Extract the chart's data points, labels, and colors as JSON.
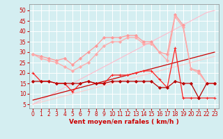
{
  "xlabel": "Vent moyen/en rafales ( km/h )",
  "background_color": "#d4eef1",
  "grid_color": "#ffffff",
  "x_values": [
    0,
    1,
    2,
    3,
    4,
    5,
    6,
    7,
    8,
    9,
    10,
    11,
    12,
    13,
    14,
    15,
    16,
    17,
    18,
    19,
    20,
    21,
    22,
    23
  ],
  "series": [
    {
      "name": "diagonal_upper_light",
      "color": "#ffbbcc",
      "linewidth": 0.8,
      "marker": null,
      "y": [
        5,
        7,
        9,
        11,
        13,
        15,
        17,
        19,
        21,
        23,
        25,
        27,
        29,
        31,
        33,
        35,
        37,
        39,
        41,
        43,
        45,
        47,
        49,
        50
      ]
    },
    {
      "name": "diagonal_lower_light",
      "color": "#ffcccc",
      "linewidth": 0.8,
      "marker": null,
      "y": [
        5,
        6,
        7,
        8,
        9,
        10,
        11,
        12,
        13,
        14,
        15,
        16,
        17,
        18,
        19,
        20,
        21,
        22,
        23,
        24,
        25,
        26,
        27,
        28
      ]
    },
    {
      "name": "pink_upper_curve",
      "color": "#ff9999",
      "linewidth": 0.9,
      "marker": "D",
      "markersize": 2,
      "y": [
        29,
        28,
        27,
        26,
        27,
        24,
        27,
        30,
        33,
        37,
        37,
        37,
        38,
        38,
        35,
        35,
        30,
        29,
        48,
        43,
        22,
        21,
        15,
        15
      ]
    },
    {
      "name": "pink_lower_curve",
      "color": "#ffaaaa",
      "linewidth": 0.9,
      "marker": "D",
      "markersize": 2,
      "y": [
        29,
        27,
        26,
        25,
        23,
        21,
        23,
        25,
        29,
        33,
        35,
        35,
        37,
        37,
        34,
        34,
        30,
        26,
        47,
        42,
        22,
        20,
        15,
        15
      ]
    },
    {
      "name": "red_main_markers",
      "color": "#ff2222",
      "linewidth": 0.9,
      "marker": "+",
      "markersize": 3,
      "y": [
        20,
        16,
        16,
        15,
        15,
        11,
        15,
        16,
        15,
        15,
        19,
        19,
        19,
        20,
        21,
        21,
        17,
        13,
        32,
        8,
        8,
        8,
        8,
        8
      ]
    },
    {
      "name": "dark_red_diagonal",
      "color": "#cc0000",
      "linewidth": 0.9,
      "marker": null,
      "y": [
        7,
        8,
        9,
        10,
        11,
        12,
        13,
        14,
        15,
        16,
        17,
        18,
        19,
        20,
        21,
        22,
        23,
        24,
        25,
        26,
        27,
        28,
        29,
        30
      ]
    },
    {
      "name": "dark_red_curve",
      "color": "#bb0000",
      "linewidth": 0.9,
      "marker": "D",
      "markersize": 2,
      "y": [
        16,
        16,
        16,
        15,
        15,
        15,
        15,
        16,
        15,
        15,
        16,
        16,
        16,
        16,
        16,
        16,
        13,
        13,
        16,
        15,
        15,
        8,
        15,
        15
      ]
    }
  ],
  "ylim": [
    3,
    53
  ],
  "yticks": [
    5,
    10,
    15,
    20,
    25,
    30,
    35,
    40,
    45,
    50
  ],
  "xticks": [
    0,
    1,
    2,
    3,
    4,
    5,
    6,
    7,
    8,
    9,
    10,
    11,
    12,
    13,
    14,
    15,
    16,
    17,
    18,
    19,
    20,
    21,
    22,
    23
  ],
  "tick_fontsize": 5.5,
  "xlabel_fontsize": 6.5,
  "label_color": "#cc0000",
  "spine_color": "#888888"
}
